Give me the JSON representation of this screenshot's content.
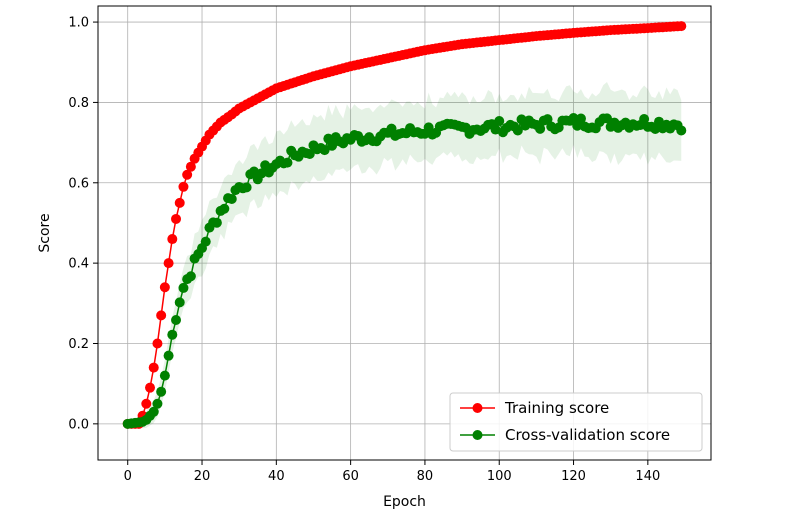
{
  "chart_data": {
    "type": "line",
    "title": "",
    "xlabel": "Epoch",
    "ylabel": "Score",
    "xlim": [
      -8,
      157
    ],
    "ylim": [
      -0.09,
      1.04
    ],
    "xticks": [
      0,
      20,
      40,
      60,
      80,
      100,
      120,
      140
    ],
    "xtick_labels": [
      "0",
      "20",
      "40",
      "60",
      "80",
      "100",
      "120",
      "140"
    ],
    "yticks": [
      0.0,
      0.2,
      0.4,
      0.6,
      0.8,
      1.0
    ],
    "ytick_labels": [
      "0.0",
      "0.2",
      "0.4",
      "0.6",
      "0.8",
      "1.0"
    ],
    "grid": true,
    "legend_position": "lower-right",
    "x_range": [
      0,
      149
    ],
    "series": [
      {
        "name": "Training score",
        "color": "#ff0000",
        "marker": "circle",
        "anchor_x": [
          0,
          3,
          4,
          5,
          6,
          7,
          8,
          9,
          10,
          11,
          12,
          13,
          14,
          15,
          16,
          17,
          18,
          20,
          22,
          25,
          28,
          30,
          35,
          40,
          45,
          50,
          60,
          70,
          80,
          90,
          100,
          110,
          120,
          130,
          140,
          149
        ],
        "anchor_y": [
          0.0,
          0.0,
          0.02,
          0.05,
          0.09,
          0.14,
          0.2,
          0.27,
          0.34,
          0.4,
          0.46,
          0.51,
          0.55,
          0.59,
          0.62,
          0.64,
          0.66,
          0.69,
          0.72,
          0.75,
          0.77,
          0.785,
          0.81,
          0.835,
          0.85,
          0.865,
          0.89,
          0.91,
          0.93,
          0.945,
          0.955,
          0.965,
          0.973,
          0.98,
          0.985,
          0.99
        ]
      },
      {
        "name": "Cross-validation score",
        "color": "#008000",
        "marker": "circle",
        "anchor_x": [
          0,
          4,
          5,
          6,
          7,
          8,
          9,
          10,
          11,
          12,
          13,
          14,
          15,
          16,
          17,
          18,
          20,
          22,
          25,
          28,
          30,
          35,
          40,
          45,
          50,
          55,
          60,
          65,
          70,
          80,
          90,
          100,
          110,
          120,
          130,
          140,
          149
        ],
        "anchor_y": [
          0.0,
          0.005,
          0.01,
          0.02,
          0.03,
          0.05,
          0.08,
          0.12,
          0.17,
          0.22,
          0.27,
          0.31,
          0.34,
          0.36,
          0.38,
          0.4,
          0.44,
          0.48,
          0.53,
          0.57,
          0.59,
          0.62,
          0.645,
          0.67,
          0.685,
          0.7,
          0.71,
          0.715,
          0.72,
          0.73,
          0.735,
          0.74,
          0.745,
          0.75,
          0.75,
          0.75,
          0.745
        ],
        "band_half_width_x": [
          0,
          5,
          10,
          15,
          20,
          30,
          50,
          100,
          149
        ],
        "band_half_width": [
          0.0,
          0.02,
          0.04,
          0.05,
          0.06,
          0.07,
          0.07,
          0.075,
          0.08
        ]
      }
    ]
  }
}
